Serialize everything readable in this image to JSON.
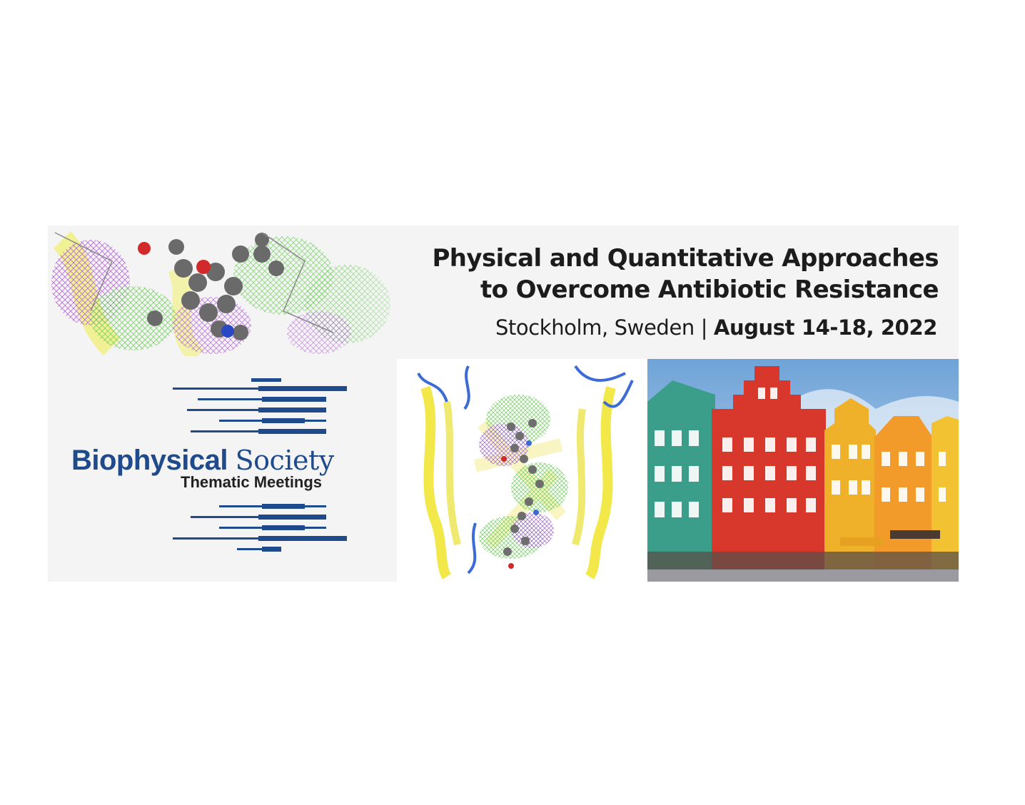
{
  "title_line1": "Physical and Quantitative Approaches",
  "title_line2": "to Overcome Antibiotic Resistance",
  "location": "Stockholm, Sweden",
  "separator": "|",
  "dates": "August 14-18, 2022",
  "logo": {
    "word1": "Biophysical",
    "word2": "Society",
    "subtitle": "Thematic Meetings",
    "color": "#1f4a8c"
  },
  "images": {
    "header_art": "molecular-structure-illustration",
    "center": "protein-structure-render",
    "right": "stockholm-colorful-buildings-photo"
  }
}
